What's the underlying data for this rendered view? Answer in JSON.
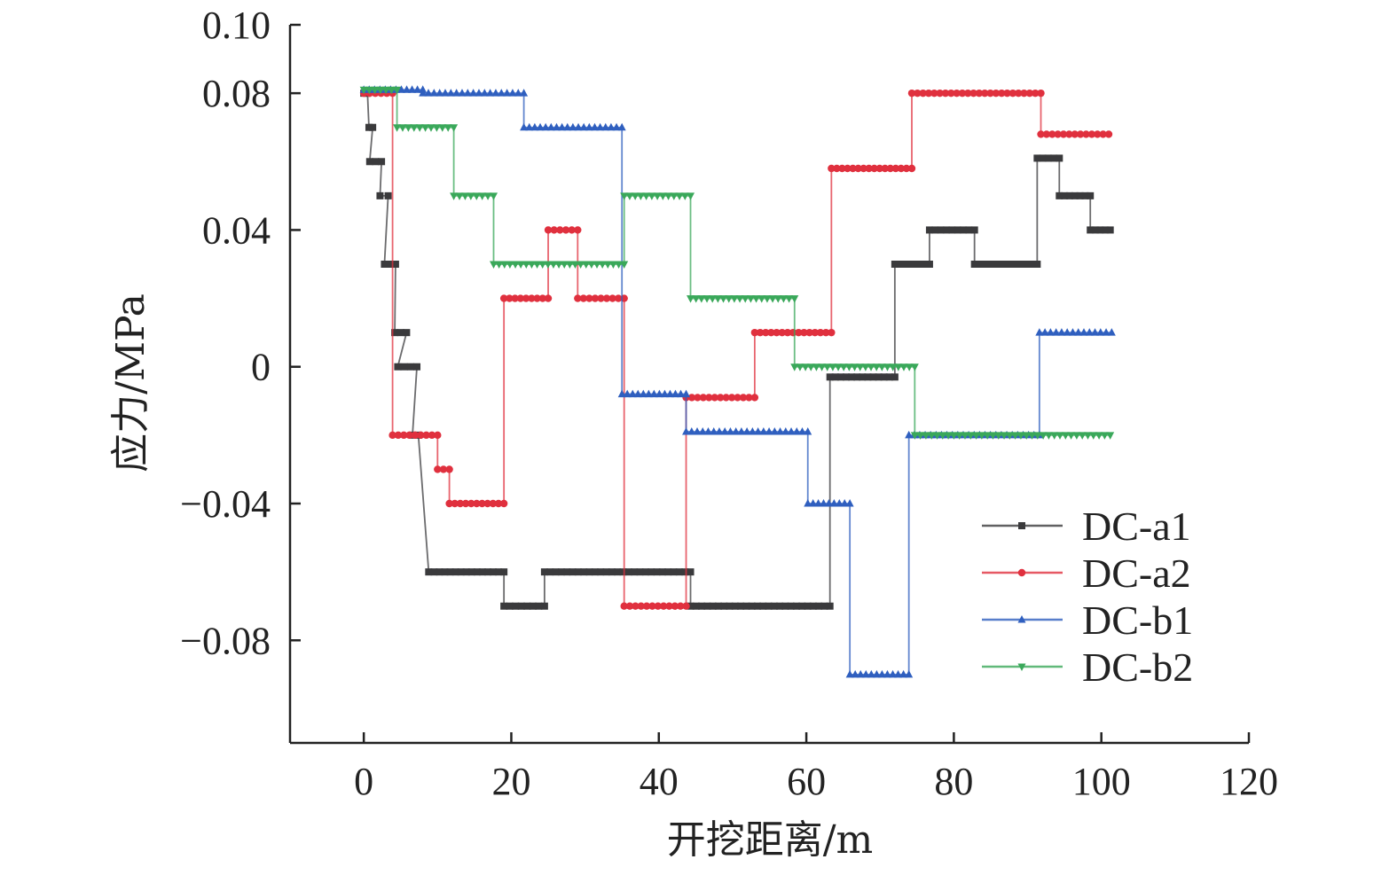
{
  "chart_data": {
    "type": "line",
    "title": "",
    "xlabel": "开挖距离/m",
    "ylabel": "应力/MPa",
    "xlim": [
      -10,
      120
    ],
    "ylim": [
      -0.11,
      0.1
    ],
    "xticks": [
      0,
      20,
      40,
      60,
      80,
      100,
      120
    ],
    "xtick_labels": [
      "0",
      "20",
      "40",
      "60",
      "80",
      "100",
      "120"
    ],
    "yticks": [
      0.1,
      0.08,
      0.04,
      0,
      -0.04,
      -0.08
    ],
    "ytick_labels": [
      "0.10",
      "0.08",
      "0.04",
      "0",
      "−0.04",
      "−0.08"
    ],
    "grid": false,
    "legend_position": "bottom-right",
    "step_format": "each step is [x_start, x_end, stress]",
    "series": [
      {
        "name": "DC-a1",
        "color": "#3a3a3c",
        "marker": "square",
        "steps": [
          [
            0,
            0.5,
            0.08
          ],
          [
            0.7,
            1.2,
            0.07
          ],
          [
            0.8,
            2.4,
            0.06
          ],
          [
            2.2,
            3.3,
            0.05
          ],
          [
            2.8,
            4.3,
            0.03
          ],
          [
            4.2,
            5.8,
            0.01
          ],
          [
            4.6,
            7.2,
            0.0
          ],
          [
            6.6,
            7.4,
            -0.02
          ],
          [
            8.8,
            19,
            -0.06
          ],
          [
            19,
            24.5,
            -0.07
          ],
          [
            24.5,
            44.3,
            -0.06
          ],
          [
            44.3,
            63.2,
            -0.07
          ],
          [
            63.2,
            72,
            -0.003
          ],
          [
            72,
            76.7,
            0.03
          ],
          [
            76.7,
            82.8,
            0.04
          ],
          [
            82.8,
            91.3,
            0.03
          ],
          [
            91.3,
            94.3,
            0.061
          ],
          [
            94.3,
            98.5,
            0.05
          ],
          [
            98.5,
            101.2,
            0.04
          ]
        ]
      },
      {
        "name": "DC-a2",
        "color": "#e0303e",
        "marker": "circle",
        "steps": [
          [
            0,
            3.9,
            0.08
          ],
          [
            3.9,
            10,
            -0.02
          ],
          [
            10,
            11.6,
            -0.03
          ],
          [
            11.6,
            19,
            -0.04
          ],
          [
            19,
            25,
            0.02
          ],
          [
            25,
            29,
            0.04
          ],
          [
            29,
            35.3,
            0.02
          ],
          [
            35.3,
            43.7,
            -0.07
          ],
          [
            43.7,
            53,
            -0.009
          ],
          [
            53,
            63.4,
            0.01
          ],
          [
            63.4,
            74.3,
            0.058
          ],
          [
            74.3,
            91.8,
            0.08
          ],
          [
            91.8,
            101,
            0.068
          ]
        ]
      },
      {
        "name": "DC-b1",
        "color": "#2f5fbf",
        "marker": "triangle-up",
        "steps": [
          [
            0,
            8,
            0.081
          ],
          [
            8,
            21.7,
            0.08
          ],
          [
            21.7,
            35,
            0.07
          ],
          [
            35,
            43.7,
            -0.008
          ],
          [
            43.7,
            60.2,
            -0.019
          ],
          [
            60.2,
            65.9,
            -0.04
          ],
          [
            65.9,
            73.9,
            -0.09
          ],
          [
            73.9,
            91.6,
            -0.02
          ],
          [
            91.6,
            101.4,
            0.01
          ]
        ]
      },
      {
        "name": "DC-b2",
        "color": "#3aa85a",
        "marker": "triangle-down",
        "steps": [
          [
            0,
            4.5,
            0.081
          ],
          [
            4.5,
            12.2,
            0.07
          ],
          [
            12.2,
            17.6,
            0.05
          ],
          [
            17.6,
            35.3,
            0.03
          ],
          [
            35.3,
            44.3,
            0.05
          ],
          [
            44.3,
            58.4,
            0.02
          ],
          [
            58.4,
            74.7,
            0.0
          ],
          [
            74.7,
            101.2,
            -0.02
          ]
        ]
      }
    ]
  }
}
